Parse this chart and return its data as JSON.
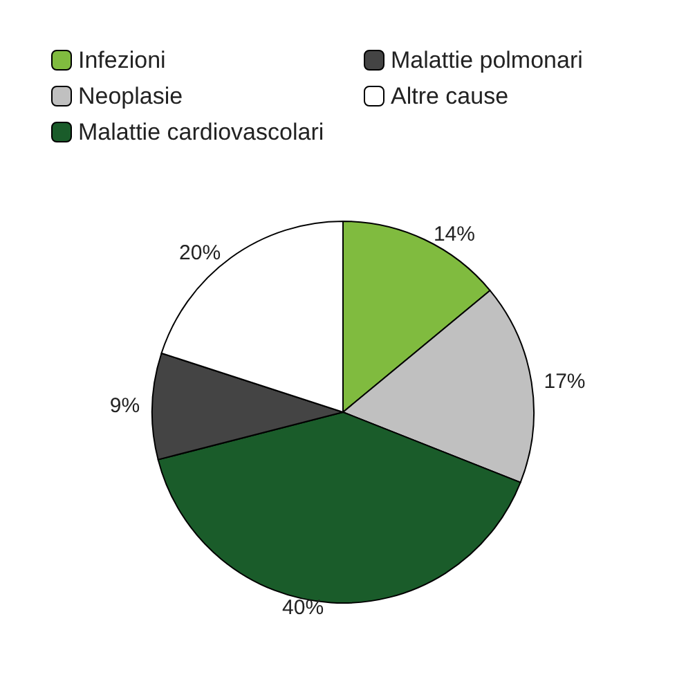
{
  "chart_data": {
    "type": "pie",
    "categories": [
      "Infezioni",
      "Neoplasie",
      "Malattie cardiovascolari",
      "Malattie polmonari",
      "Altre cause"
    ],
    "values": [
      14,
      17,
      40,
      9,
      20
    ],
    "colors": [
      "#80bb3f",
      "#c0c0c0",
      "#1a5c2a",
      "#444444",
      "#ffffff"
    ],
    "value_labels": [
      "14%",
      "17%",
      "40%",
      "9%",
      "20%"
    ],
    "legend": "top left"
  }
}
